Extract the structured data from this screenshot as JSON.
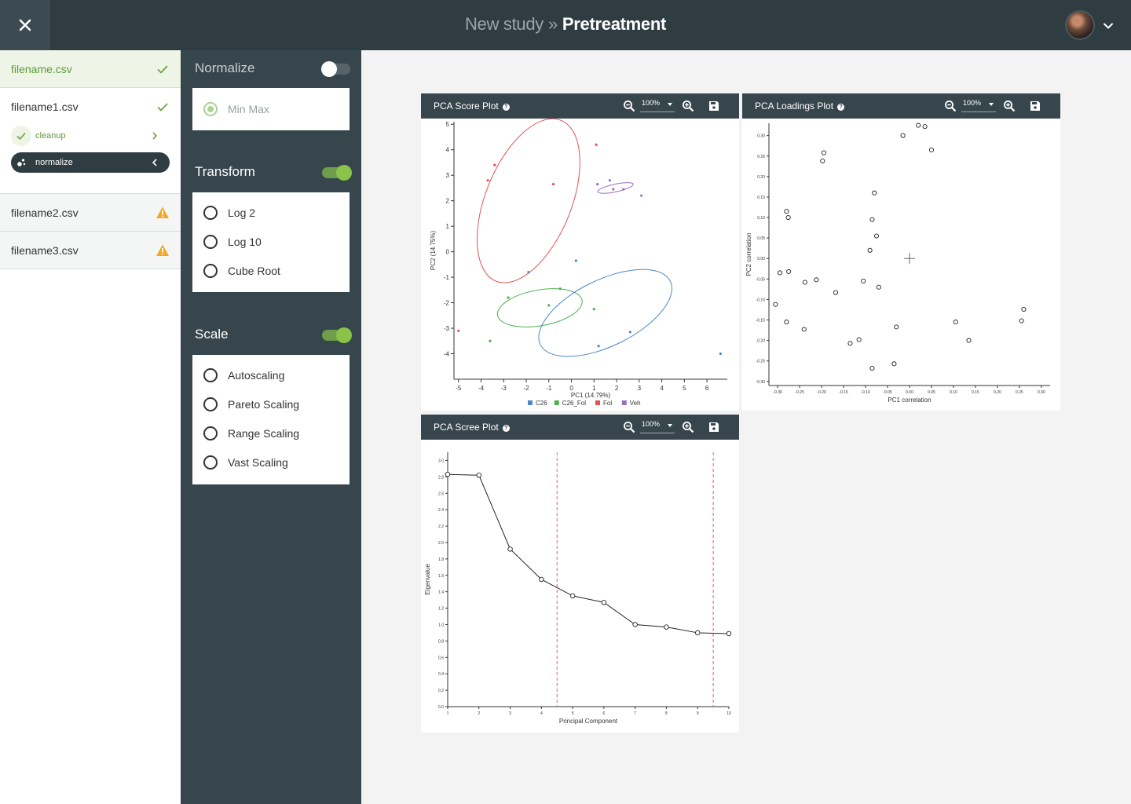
{
  "header": {
    "crumb": "New study",
    "separator": "»",
    "current": "Pretreatment",
    "icons": {
      "close": "close-icon",
      "chevron": "chevron-down-icon"
    }
  },
  "files": [
    {
      "name": "filename.csv",
      "status": "done"
    },
    {
      "name": "filename1.csv",
      "status": "done",
      "steps": [
        {
          "label": "cleanup",
          "state": "done",
          "icon": "check-icon"
        },
        {
          "label": "normalize",
          "state": "current",
          "icon": "steps-icon"
        }
      ]
    },
    {
      "name": "filename2.csv",
      "status": "warning"
    },
    {
      "name": "filename3.csv",
      "status": "warning"
    }
  ],
  "pretreatment": {
    "normalize": {
      "title": "Normalize",
      "enabled": false,
      "options": [
        "Min Max"
      ],
      "selected": "Min Max"
    },
    "transform": {
      "title": "Transform",
      "enabled": true,
      "options": [
        "Log 2",
        "Log 10",
        "Cube Root"
      ]
    },
    "scale": {
      "title": "Scale",
      "enabled": true,
      "options": [
        "Autoscaling",
        "Pareto Scaling",
        "Range Scaling",
        "Vast Scaling"
      ]
    }
  },
  "plots": {
    "score": {
      "title": "PCA Score Plot",
      "zoom": "100%",
      "help": "?"
    },
    "loadings": {
      "title": "PCA Loadings Plot",
      "zoom": "100%",
      "help": "?"
    },
    "scree": {
      "title": "PCA Scree Plot",
      "zoom": "100%",
      "help": "?"
    }
  },
  "colors": {
    "accent": "#8bc34a",
    "dark": "#2f3c42",
    "panel": "#37464d",
    "warning": "#f5a623"
  },
  "chart_data": [
    {
      "type": "scatter",
      "name": "score",
      "xlabel": "PC1 (14.79%)",
      "ylabel": "PC2 (14.75%)",
      "xlim": [
        -5.2,
        6.9
      ],
      "ylim": [
        -5,
        5.1
      ],
      "xticks": [
        -5,
        -4,
        -3,
        -2,
        -1,
        0,
        1,
        2,
        3,
        4,
        5,
        6
      ],
      "yticks": [
        -4,
        -3,
        -2,
        -1,
        0,
        1,
        2,
        3,
        4,
        5
      ],
      "legend": [
        "C26",
        "C26_Fol",
        "Fol",
        "Veh"
      ],
      "legend_position": "bottom",
      "series": [
        {
          "name": "C26",
          "color": "#4a86c8",
          "points": [
            [
              -1.9,
              -0.8
            ],
            [
              0.2,
              -0.35
            ],
            [
              1.2,
              -3.7
            ],
            [
              2.6,
              -3.15
            ],
            [
              6.6,
              -4.0
            ]
          ]
        },
        {
          "name": "C26_Fol",
          "color": "#4caf50",
          "points": [
            [
              -3.6,
              -3.5
            ],
            [
              -2.8,
              -1.8
            ],
            [
              -1.0,
              -2.1
            ],
            [
              -0.5,
              -1.45
            ],
            [
              1.0,
              -2.25
            ]
          ]
        },
        {
          "name": "Fol",
          "color": "#e05252",
          "points": [
            [
              -3.7,
              2.8
            ],
            [
              -3.4,
              3.4
            ],
            [
              -0.8,
              2.65
            ],
            [
              1.1,
              4.2
            ],
            [
              -5.0,
              -3.1
            ]
          ]
        },
        {
          "name": "Veh",
          "color": "#9b6fc0",
          "points": [
            [
              1.15,
              2.65
            ],
            [
              1.7,
              2.8
            ],
            [
              1.85,
              2.45
            ],
            [
              2.3,
              2.45
            ],
            [
              3.1,
              2.2
            ]
          ]
        }
      ],
      "ellipses": [
        {
          "series": "Fol",
          "cx": -1.9,
          "cy": 2.0,
          "rx": 1.9,
          "ry": 3.4,
          "angle": 22
        },
        {
          "series": "Veh",
          "cx": 1.95,
          "cy": 2.5,
          "rx": 0.8,
          "ry": 0.15,
          "angle": -12
        },
        {
          "series": "C26_Fol",
          "cx": -1.4,
          "cy": -2.2,
          "rx": 1.9,
          "ry": 0.7,
          "angle": -10
        },
        {
          "series": "C26",
          "cx": 1.5,
          "cy": -2.4,
          "rx": 3.2,
          "ry": 1.3,
          "angle": -26
        }
      ]
    },
    {
      "type": "scatter",
      "name": "loadings",
      "xlabel": "PC1 correlation",
      "ylabel": "PC2 correlation",
      "xlim": [
        -0.32,
        0.32
      ],
      "ylim": [
        -0.31,
        0.33
      ],
      "xticks": [
        -0.3,
        -0.25,
        -0.2,
        -0.15,
        -0.1,
        -0.05,
        0.0,
        0.05,
        0.1,
        0.15,
        0.2,
        0.25,
        0.3
      ],
      "xtick_labels": [
        "-0.30",
        "-0.25",
        "-0.20",
        "-0.15",
        "-0.10",
        "-0.05",
        "0.00",
        "0.05",
        "0.10",
        "0.15",
        "0.20",
        "0.25",
        "0.30"
      ],
      "yticks": [
        -0.3,
        -0.25,
        -0.2,
        -0.15,
        -0.1,
        -0.05,
        0.0,
        0.05,
        0.1,
        0.15,
        0.2,
        0.25,
        0.3
      ],
      "ytick_labels": [
        "-0.30",
        "-0.25",
        "-0.20",
        "-0.15",
        "-0.10",
        "-0.05",
        "0.00",
        "0.05",
        "0.10",
        "0.15",
        "0.20",
        "0.25",
        "0.30"
      ],
      "points": [
        [
          0.02,
          0.325
        ],
        [
          0.035,
          0.322
        ],
        [
          -0.015,
          0.3
        ],
        [
          0.05,
          0.265
        ],
        [
          -0.195,
          0.258
        ],
        [
          -0.198,
          0.238
        ],
        [
          -0.08,
          0.16
        ],
        [
          -0.28,
          0.115
        ],
        [
          -0.276,
          0.1
        ],
        [
          -0.085,
          0.095
        ],
        [
          -0.075,
          0.055
        ],
        [
          -0.09,
          0.02
        ],
        [
          -0.295,
          -0.035
        ],
        [
          -0.275,
          -0.032
        ],
        [
          -0.238,
          -0.058
        ],
        [
          -0.212,
          -0.052
        ],
        [
          -0.105,
          -0.055
        ],
        [
          -0.07,
          -0.07
        ],
        [
          -0.168,
          -0.083
        ],
        [
          -0.305,
          -0.112
        ],
        [
          0.26,
          -0.124
        ],
        [
          -0.28,
          -0.155
        ],
        [
          -0.24,
          -0.173
        ],
        [
          -0.03,
          -0.167
        ],
        [
          0.105,
          -0.155
        ],
        [
          0.255,
          -0.152
        ],
        [
          -0.115,
          -0.198
        ],
        [
          -0.135,
          -0.207
        ],
        [
          0.135,
          -0.2
        ],
        [
          -0.035,
          -0.257
        ],
        [
          -0.085,
          -0.268
        ]
      ]
    },
    {
      "type": "line",
      "name": "scree",
      "xlabel": "Principal Component",
      "ylabel": "Eigenvalue",
      "xlim": [
        1,
        10
      ],
      "ylim": [
        0,
        3.1
      ],
      "x": [
        1,
        2,
        3,
        4,
        5,
        6,
        7,
        8,
        9,
        10
      ],
      "y": [
        2.83,
        2.82,
        1.92,
        1.55,
        1.35,
        1.27,
        1.0,
        0.97,
        0.9,
        0.89
      ],
      "yticks": [
        0.0,
        0.2,
        0.4,
        0.6,
        0.8,
        1.0,
        1.2,
        1.4,
        1.6,
        1.8,
        2.0,
        2.2,
        2.4,
        2.6,
        2.8,
        3.0
      ],
      "ytick_labels": [
        "0.0",
        "0.2",
        "0.4",
        "0.6",
        "0.8",
        "1.0",
        "1.2",
        "1.4",
        "1.6",
        "1.8",
        "2.0",
        "2.2",
        "2.4",
        "2.6",
        "2.8",
        "3.0"
      ],
      "xticks": [
        1,
        2,
        3,
        4,
        5,
        6,
        7,
        8,
        9,
        10
      ],
      "reference_lines_x": [
        4.5,
        9.5
      ]
    }
  ]
}
